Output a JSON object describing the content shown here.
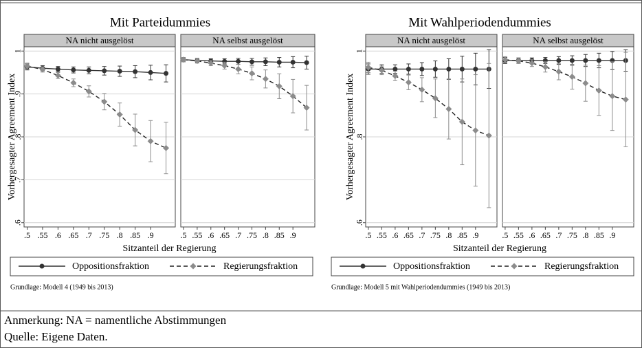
{
  "chart_data": [
    {
      "type": "line",
      "title": "Mit Parteidummies",
      "ylabel": "Vorhergesagter Agreement Index",
      "xlabel": "Sitzanteil der Regierung",
      "caption": "Grundlage: Modell 4 (1949 bis 2013)",
      "x": [
        0.5,
        0.55,
        0.6,
        0.65,
        0.7,
        0.75,
        0.8,
        0.85,
        0.9,
        0.95
      ],
      "xlim": [
        0.49,
        0.98
      ],
      "xticks": [
        {
          "value": 0.5,
          "label": ".5"
        },
        {
          "value": 0.55,
          "label": ".55"
        },
        {
          "value": 0.6,
          "label": ".6"
        },
        {
          "value": 0.65,
          "label": ".65"
        },
        {
          "value": 0.7,
          "label": ".7"
        },
        {
          "value": 0.75,
          "label": ".75"
        },
        {
          "value": 0.8,
          "label": ".8"
        },
        {
          "value": 0.85,
          "label": ".85"
        },
        {
          "value": 0.9,
          "label": ".9"
        }
      ],
      "ylim": [
        0.59,
        1.01
      ],
      "yticks": [
        {
          "value": 0.6,
          "label": ".6"
        },
        {
          "value": 0.7,
          "label": ".7"
        },
        {
          "value": 0.8,
          "label": ".8"
        },
        {
          "value": 0.9,
          "label": ".9"
        },
        1
      ],
      "grid": true,
      "series": [
        {
          "name": "Oppositionsfraktion",
          "color": "#333333"
        },
        {
          "name": "Regierungsfraktion",
          "color": "#8c8c8c"
        }
      ],
      "panels": [
        {
          "title": "NA nicht ausgelöst",
          "values": [
            [
              0.963,
              0.96,
              0.958,
              0.956,
              0.955,
              0.954,
              0.953,
              0.952,
              0.95,
              0.948
            ],
            [
              0.965,
              0.957,
              0.943,
              0.926,
              0.906,
              0.882,
              0.852,
              0.816,
              0.79,
              0.774
            ]
          ],
          "errors": [
            [
              0.007,
              0.006,
              0.006,
              0.007,
              0.008,
              0.01,
              0.012,
              0.014,
              0.017,
              0.02
            ],
            [
              0.007,
              0.006,
              0.007,
              0.009,
              0.013,
              0.019,
              0.027,
              0.037,
              0.048,
              0.06
            ]
          ]
        },
        {
          "title": "NA selbst ausgelöst",
          "values": [
            [
              0.98,
              0.978,
              0.977,
              0.976,
              0.976,
              0.975,
              0.975,
              0.974,
              0.974,
              0.973
            ],
            [
              0.98,
              0.977,
              0.972,
              0.966,
              0.958,
              0.948,
              0.935,
              0.918,
              0.895,
              0.868
            ]
          ],
          "errors": [
            [
              0.005,
              0.005,
              0.005,
              0.006,
              0.007,
              0.008,
              0.009,
              0.011,
              0.013,
              0.015
            ],
            [
              0.005,
              0.005,
              0.006,
              0.008,
              0.011,
              0.015,
              0.021,
              0.029,
              0.039,
              0.052
            ]
          ]
        }
      ]
    },
    {
      "type": "line",
      "title": "Mit Wahlperiodendummies",
      "ylabel": "Vorhergesagter Agreement Index",
      "xlabel": "Sitzanteil der Regierung",
      "caption": "Grundlage: Modell 5 mit Wahlperiodendummies (1949 bis 2013)",
      "x": [
        0.5,
        0.55,
        0.6,
        0.65,
        0.7,
        0.75,
        0.8,
        0.85,
        0.9,
        0.95
      ],
      "xlim": [
        0.49,
        0.98
      ],
      "xticks": [
        {
          "value": 0.5,
          "label": ".5"
        },
        {
          "value": 0.55,
          "label": ".55"
        },
        {
          "value": 0.6,
          "label": ".6"
        },
        {
          "value": 0.65,
          "label": ".65"
        },
        {
          "value": 0.7,
          "label": ".7"
        },
        {
          "value": 0.75,
          "label": ".75"
        },
        {
          "value": 0.8,
          "label": ".8"
        },
        {
          "value": 0.85,
          "label": ".85"
        },
        {
          "value": 0.9,
          "label": ".9"
        }
      ],
      "ylim": [
        0.59,
        1.01
      ],
      "yticks": [
        {
          "value": 0.6,
          "label": ".6"
        },
        {
          "value": 0.8,
          "label": ".8"
        },
        1
      ],
      "grid": true,
      "series": [
        {
          "name": "Oppositionsfraktion",
          "color": "#333333"
        },
        {
          "name": "Regierungsfraktion",
          "color": "#8c8c8c"
        }
      ],
      "panels": [
        {
          "title": "NA nicht ausgelöst",
          "values": [
            [
              0.958,
              0.958,
              0.958,
              0.958,
              0.958,
              0.958,
              0.958,
              0.958,
              0.958,
              0.958
            ],
            [
              0.962,
              0.955,
              0.942,
              0.927,
              0.91,
              0.89,
              0.865,
              0.835,
              0.815,
              0.803
            ]
          ],
          "errors": [
            [
              0.012,
              0.01,
              0.01,
              0.012,
              0.015,
              0.019,
              0.024,
              0.03,
              0.037,
              0.045
            ],
            [
              0.012,
              0.01,
              0.011,
              0.017,
              0.028,
              0.045,
              0.07,
              0.1,
              0.13,
              0.168
            ]
          ]
        },
        {
          "title": "NA selbst ausgelöst",
          "values": [
            [
              0.978,
              0.978,
              0.978,
              0.978,
              0.978,
              0.978,
              0.978,
              0.978,
              0.978,
              0.978
            ],
            [
              0.98,
              0.977,
              0.972,
              0.963,
              0.952,
              0.94,
              0.925,
              0.908,
              0.895,
              0.887
            ]
          ],
          "errors": [
            [
              0.007,
              0.006,
              0.006,
              0.007,
              0.009,
              0.011,
              0.014,
              0.017,
              0.021,
              0.025
            ],
            [
              0.007,
              0.006,
              0.008,
              0.012,
              0.019,
              0.029,
              0.042,
              0.058,
              0.08,
              0.11
            ]
          ]
        }
      ]
    }
  ],
  "notes": [
    "Anmerkung: NA = namentliche Abstimmungen",
    "Quelle: Eigene Daten."
  ]
}
